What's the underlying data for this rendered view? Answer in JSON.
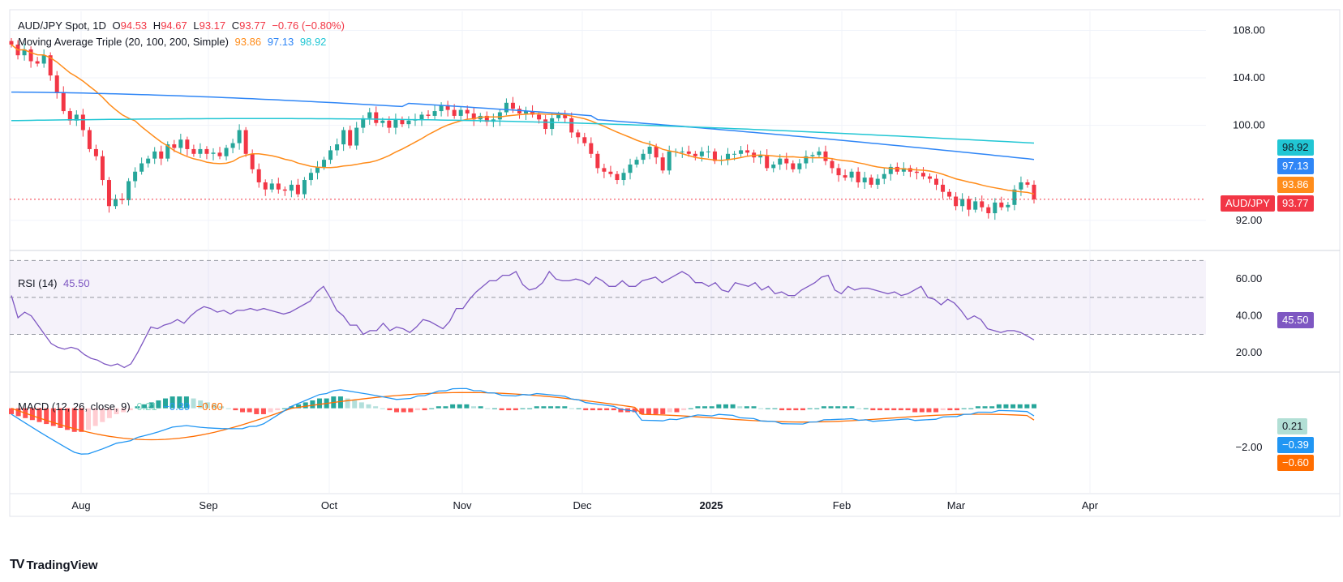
{
  "header": {
    "symbol": "AUD/JPY Spot, 1D",
    "open_label": "O",
    "open": "94.53",
    "high_label": "H",
    "high": "94.67",
    "low_label": "L",
    "low": "93.17",
    "close_label": "C",
    "close": "93.77",
    "change": "−0.76 (−0.80%)"
  },
  "ma_legend": {
    "label": "Moving Average Triple (20, 100, 200, Simple)",
    "ma20": "93.86",
    "ma100": "97.13",
    "ma200": "98.92"
  },
  "rsi_legend": {
    "label": "RSI (14)",
    "value": "45.50"
  },
  "macd_legend": {
    "label": "MACD (12, 26, close, 9)",
    "hist": "0.21",
    "macd": "−0.39",
    "signal": "−0.60"
  },
  "price_tags": {
    "ma200": "98.92",
    "ma100": "97.13",
    "ma20": "93.86",
    "symbol": "AUD/JPY",
    "last": "93.77",
    "rsi": "45.50",
    "hist": "0.21",
    "macd": "−0.39",
    "signal": "−0.60"
  },
  "colors": {
    "up": "#26a69a",
    "down": "#f23645",
    "ma20": "#ff8c1a",
    "ma100": "#2f86f6",
    "ma200": "#21c6d4",
    "rsi": "#7e57c2",
    "macd": "#2196f3",
    "signal": "#ff6d00"
  },
  "brand": {
    "name": "TradingView"
  },
  "chart_data": [
    {
      "type": "candlestick",
      "title": "AUD/JPY Spot, 1D",
      "x": [
        "Aug",
        "Sep",
        "Oct",
        "Nov",
        "Dec",
        "2025",
        "Feb",
        "Mar",
        "Apr"
      ],
      "y_ticks": [
        "108.00",
        "104.00",
        "100.00",
        "92.00"
      ],
      "ylim": [
        89.6,
        109.6
      ],
      "last_close": 93.77,
      "closes": [
        106.8,
        105.9,
        106.4,
        105.4,
        105.2,
        105.9,
        104.2,
        102.8,
        101.2,
        100.4,
        100.9,
        99.6,
        98.0,
        97.4,
        95.4,
        93.2,
        93.8,
        93.7,
        95.3,
        96.1,
        96.8,
        97.2,
        97.8,
        97.2,
        98.4,
        98.1,
        98.8,
        98.0,
        97.6,
        98.0,
        97.6,
        97.7,
        97.4,
        98.1,
        98.5,
        99.6,
        97.6,
        96.3,
        95.2,
        94.6,
        95.1,
        94.6,
        94.5,
        95.0,
        94.2,
        95.4,
        96.0,
        96.5,
        97.1,
        97.9,
        98.4,
        99.6,
        98.3,
        99.8,
        100.6,
        101.1,
        100.2,
        100.4,
        99.8,
        100.5,
        100.1,
        100.4,
        100.5,
        100.9,
        100.8,
        101.2,
        101.7,
        101.3,
        100.8,
        101.3,
        101.0,
        100.5,
        100.8,
        100.3,
        100.5,
        101.1,
        101.9,
        101.4,
        101.0,
        101.2,
        100.9,
        100.5,
        99.7,
        100.6,
        100.9,
        100.6,
        99.4,
        99.0,
        98.5,
        97.6,
        96.4,
        96.1,
        95.9,
        95.4,
        96.0,
        96.7,
        97.1,
        97.6,
        98.2,
        97.3,
        96.2,
        97.8,
        97.8,
        97.8,
        97.6,
        97.4,
        97.8,
        97.8,
        97.0,
        97.1,
        97.6,
        97.6,
        97.9,
        97.7,
        97.3,
        97.5,
        96.4,
        96.7,
        97.2,
        96.8,
        96.3,
        96.8,
        97.4,
        97.5,
        97.8,
        97.0,
        96.4,
        95.8,
        95.6,
        96.1,
        95.2,
        95.6,
        95.0,
        95.5,
        95.9,
        96.5,
        96.1,
        96.4,
        96.1,
        96.0,
        95.7,
        95.5,
        95.0,
        94.4,
        94.0,
        93.2,
        93.8,
        92.9,
        93.6,
        93.1,
        92.6,
        93.5,
        93.1,
        93.3,
        94.6,
        95.2,
        95.0,
        93.77
      ]
    },
    {
      "type": "line",
      "title": "RSI (14)",
      "y_ticks": [
        "60.00",
        "40.00",
        "20.00"
      ],
      "ylim": [
        10,
        75
      ],
      "bands": [
        30,
        50,
        70
      ],
      "last_value": 45.5,
      "values": [
        51,
        39,
        42,
        40,
        35,
        30,
        25,
        23,
        22,
        23,
        22,
        19,
        17,
        16,
        14,
        13,
        14,
        12,
        14,
        20,
        27,
        34,
        33,
        35,
        36,
        38,
        36,
        40,
        43,
        45,
        44,
        42,
        43,
        41,
        43,
        43,
        44,
        43,
        44,
        43,
        42,
        41,
        42,
        44,
        46,
        48,
        53,
        56,
        50,
        43,
        40,
        35,
        35,
        30,
        32,
        32,
        36,
        32,
        34,
        33,
        31,
        34,
        38,
        37,
        35,
        33,
        37,
        44,
        44,
        49,
        53,
        56,
        59,
        59,
        62,
        62,
        64,
        57,
        54,
        55,
        58,
        64,
        60,
        59,
        59,
        60,
        59,
        57,
        61,
        59,
        56,
        56,
        59,
        56,
        56,
        59,
        60,
        61,
        58,
        60,
        62,
        64,
        62,
        58,
        58,
        56,
        58,
        54,
        53,
        58,
        57,
        56,
        58,
        54,
        56,
        52,
        53,
        51,
        51,
        54,
        56,
        58,
        61,
        62,
        54,
        52,
        56,
        54,
        55,
        55,
        54,
        53,
        52,
        53,
        51,
        52,
        54,
        56,
        50,
        49,
        46,
        49,
        47,
        43,
        38,
        40,
        38,
        33,
        32,
        31,
        32,
        32,
        31,
        29,
        27
      ]
    },
    {
      "type": "bar",
      "title": "MACD (12, 26, close, 9)",
      "y_ticks": [
        "−2.00"
      ],
      "ylim": [
        -4.3,
        1.8
      ],
      "series": [
        {
          "name": "Histogram",
          "last_value": 0.21,
          "values": [
            -0.3,
            -0.4,
            -0.5,
            -0.6,
            -0.7,
            -0.8,
            -0.9,
            -1.0,
            -1.1,
            -1.2,
            -1.2,
            -1.1,
            -0.9,
            -0.7,
            -0.5,
            -0.3,
            -0.2,
            -0.1,
            0.1,
            0.2,
            0.3,
            0.4,
            0.5,
            0.6,
            0.6,
            0.6,
            0.5,
            0.4,
            0.3,
            0.2,
            0.1,
            0.0,
            -0.1,
            -0.2,
            -0.2,
            -0.3,
            -0.3,
            -0.2,
            -0.1,
            0.0,
            0.1,
            0.2,
            0.3,
            0.4,
            0.5,
            0.5,
            0.6,
            0.6,
            0.5,
            0.4,
            0.3,
            0.2,
            0.1,
            0.0,
            -0.1,
            -0.2,
            -0.2,
            -0.2,
            -0.1,
            -0.1,
            0.0,
            0.1,
            0.1,
            0.2,
            0.2,
            0.2,
            0.1,
            0.1,
            0.0,
            0.0,
            -0.1,
            -0.1,
            -0.1,
            0.0,
            0.0,
            0.1,
            0.1,
            0.1,
            0.1,
            0.1,
            0.0,
            0.0,
            -0.1,
            -0.1,
            -0.1,
            -0.1,
            -0.1,
            -0.2,
            -0.2,
            -0.2,
            -0.3,
            -0.3,
            -0.3,
            -0.3,
            -0.2,
            -0.2,
            -0.1,
            0.0,
            0.1,
            0.1,
            0.1,
            0.2,
            0.2,
            0.2,
            0.1,
            0.1,
            0.1,
            0.0,
            0.0,
            0.0,
            -0.1,
            -0.1,
            -0.1,
            -0.1,
            0.0,
            0.0,
            0.1,
            0.1,
            0.1,
            0.1,
            0.1,
            0.0,
            0.0,
            -0.1,
            -0.1,
            -0.1,
            -0.1,
            -0.1,
            -0.1,
            -0.2,
            -0.2,
            -0.2,
            -0.2,
            -0.1,
            -0.1,
            -0.1,
            0.0,
            0.0,
            0.1,
            0.1,
            0.1,
            0.2,
            0.2,
            0.2,
            0.2,
            0.2,
            0.21
          ]
        }
      ]
    }
  ]
}
